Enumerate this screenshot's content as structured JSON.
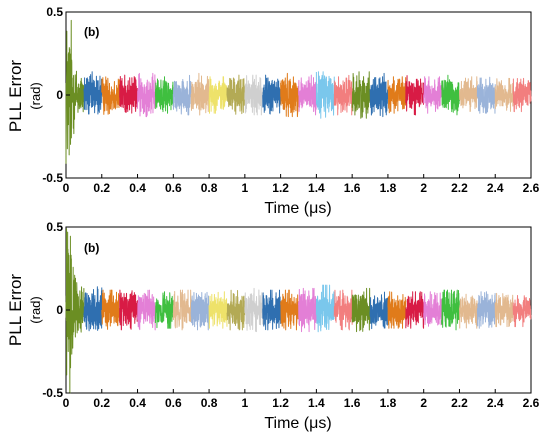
{
  "chart_data": [
    {
      "type": "line",
      "panel_label": "(b)",
      "xlabel": "Time (μs)",
      "ylabel": "PLL Error",
      "yunit": "(rad)",
      "xlim": [
        0,
        2.6
      ],
      "ylim": [
        -0.5,
        0.5
      ],
      "xticks": [
        "0",
        "0.2",
        "0.4",
        "0.6",
        "0.8",
        "1",
        "1.2",
        "1.4",
        "1.6",
        "1.8",
        "2",
        "2.2",
        "2.4",
        "2.6"
      ],
      "yticks": [
        "-0.5",
        "0",
        "0.5"
      ],
      "grid": false,
      "initial_transient": {
        "x_end": 0.03,
        "peak": 0.5,
        "trough": -0.5
      },
      "segment_duration": 0.1,
      "segments": [
        {
          "start": 0.0,
          "color": "#6b8e23",
          "amplitude": 0.5
        },
        {
          "start": 0.1,
          "color": "#2f6fb0",
          "amplitude": 0.14
        },
        {
          "start": 0.2,
          "color": "#e07b1a",
          "amplitude": 0.12
        },
        {
          "start": 0.3,
          "color": "#d81b45",
          "amplitude": 0.12
        },
        {
          "start": 0.4,
          "color": "#e37fd6",
          "amplitude": 0.13
        },
        {
          "start": 0.5,
          "color": "#3fbf3f",
          "amplitude": 0.11
        },
        {
          "start": 0.6,
          "color": "#9ab3d9",
          "amplitude": 0.12
        },
        {
          "start": 0.7,
          "color": "#e2b98f",
          "amplitude": 0.13
        },
        {
          "start": 0.8,
          "color": "#eee26a",
          "amplitude": 0.11
        },
        {
          "start": 0.9,
          "color": "#b3aa55",
          "amplitude": 0.12
        },
        {
          "start": 1.0,
          "color": "#cfcfcf",
          "amplitude": 0.12
        },
        {
          "start": 1.1,
          "color": "#2f6fb0",
          "amplitude": 0.12
        },
        {
          "start": 1.2,
          "color": "#e07b1a",
          "amplitude": 0.13
        },
        {
          "start": 1.3,
          "color": "#e37fd6",
          "amplitude": 0.12
        },
        {
          "start": 1.4,
          "color": "#7ac7ec",
          "amplitude": 0.14
        },
        {
          "start": 1.5,
          "color": "#f27e7e",
          "amplitude": 0.12
        },
        {
          "start": 1.6,
          "color": "#6b8e23",
          "amplitude": 0.14
        },
        {
          "start": 1.7,
          "color": "#2f6fb0",
          "amplitude": 0.13
        },
        {
          "start": 1.8,
          "color": "#e07b1a",
          "amplitude": 0.11
        },
        {
          "start": 1.9,
          "color": "#d81b45",
          "amplitude": 0.12
        },
        {
          "start": 2.0,
          "color": "#e37fd6",
          "amplitude": 0.11
        },
        {
          "start": 2.1,
          "color": "#3fbf3f",
          "amplitude": 0.12
        },
        {
          "start": 2.2,
          "color": "#e2b98f",
          "amplitude": 0.11
        },
        {
          "start": 2.3,
          "color": "#9ab3d9",
          "amplitude": 0.11
        },
        {
          "start": 2.4,
          "color": "#e2b98f",
          "amplitude": 0.1
        },
        {
          "start": 2.5,
          "color": "#f27e7e",
          "amplitude": 0.1
        }
      ]
    },
    {
      "type": "line",
      "panel_label": "(b)",
      "xlabel": "Time (μs)",
      "ylabel": "PLL Error",
      "yunit": "(rad)",
      "xlim": [
        0,
        2.6
      ],
      "ylim": [
        -0.5,
        0.5
      ],
      "xticks": [
        "0",
        "0.2",
        "0.4",
        "0.6",
        "0.8",
        "1",
        "1.2",
        "1.4",
        "1.6",
        "1.8",
        "2",
        "2.2",
        "2.4",
        "2.6"
      ],
      "yticks": [
        "-0.5",
        "0",
        "0.5"
      ],
      "grid": false,
      "initial_transient": {
        "x_end": 0.03,
        "peak": 0.5,
        "trough": -0.5
      },
      "segment_duration": 0.1,
      "segments": [
        {
          "start": 0.0,
          "color": "#6b8e23",
          "amplitude": 0.5
        },
        {
          "start": 0.1,
          "color": "#2f6fb0",
          "amplitude": 0.14
        },
        {
          "start": 0.2,
          "color": "#e07b1a",
          "amplitude": 0.12
        },
        {
          "start": 0.3,
          "color": "#d81b45",
          "amplitude": 0.12
        },
        {
          "start": 0.4,
          "color": "#e37fd6",
          "amplitude": 0.12
        },
        {
          "start": 0.5,
          "color": "#3fbf3f",
          "amplitude": 0.11
        },
        {
          "start": 0.6,
          "color": "#e2b98f",
          "amplitude": 0.12
        },
        {
          "start": 0.7,
          "color": "#9ab3d9",
          "amplitude": 0.12
        },
        {
          "start": 0.8,
          "color": "#eee26a",
          "amplitude": 0.11
        },
        {
          "start": 0.9,
          "color": "#b3aa55",
          "amplitude": 0.12
        },
        {
          "start": 1.0,
          "color": "#cfcfcf",
          "amplitude": 0.13
        },
        {
          "start": 1.1,
          "color": "#2f6fb0",
          "amplitude": 0.12
        },
        {
          "start": 1.2,
          "color": "#e07b1a",
          "amplitude": 0.12
        },
        {
          "start": 1.3,
          "color": "#e37fd6",
          "amplitude": 0.13
        },
        {
          "start": 1.4,
          "color": "#7ac7ec",
          "amplitude": 0.15
        },
        {
          "start": 1.5,
          "color": "#f27e7e",
          "amplitude": 0.12
        },
        {
          "start": 1.6,
          "color": "#6b8e23",
          "amplitude": 0.13
        },
        {
          "start": 1.7,
          "color": "#2f6fb0",
          "amplitude": 0.12
        },
        {
          "start": 1.8,
          "color": "#e07b1a",
          "amplitude": 0.11
        },
        {
          "start": 1.9,
          "color": "#d81b45",
          "amplitude": 0.11
        },
        {
          "start": 2.0,
          "color": "#e37fd6",
          "amplitude": 0.11
        },
        {
          "start": 2.1,
          "color": "#3fbf3f",
          "amplitude": 0.12
        },
        {
          "start": 2.2,
          "color": "#e2b98f",
          "amplitude": 0.11
        },
        {
          "start": 2.3,
          "color": "#9ab3d9",
          "amplitude": 0.11
        },
        {
          "start": 2.4,
          "color": "#e2b98f",
          "amplitude": 0.1
        },
        {
          "start": 2.5,
          "color": "#f27e7e",
          "amplitude": 0.1
        }
      ]
    }
  ]
}
